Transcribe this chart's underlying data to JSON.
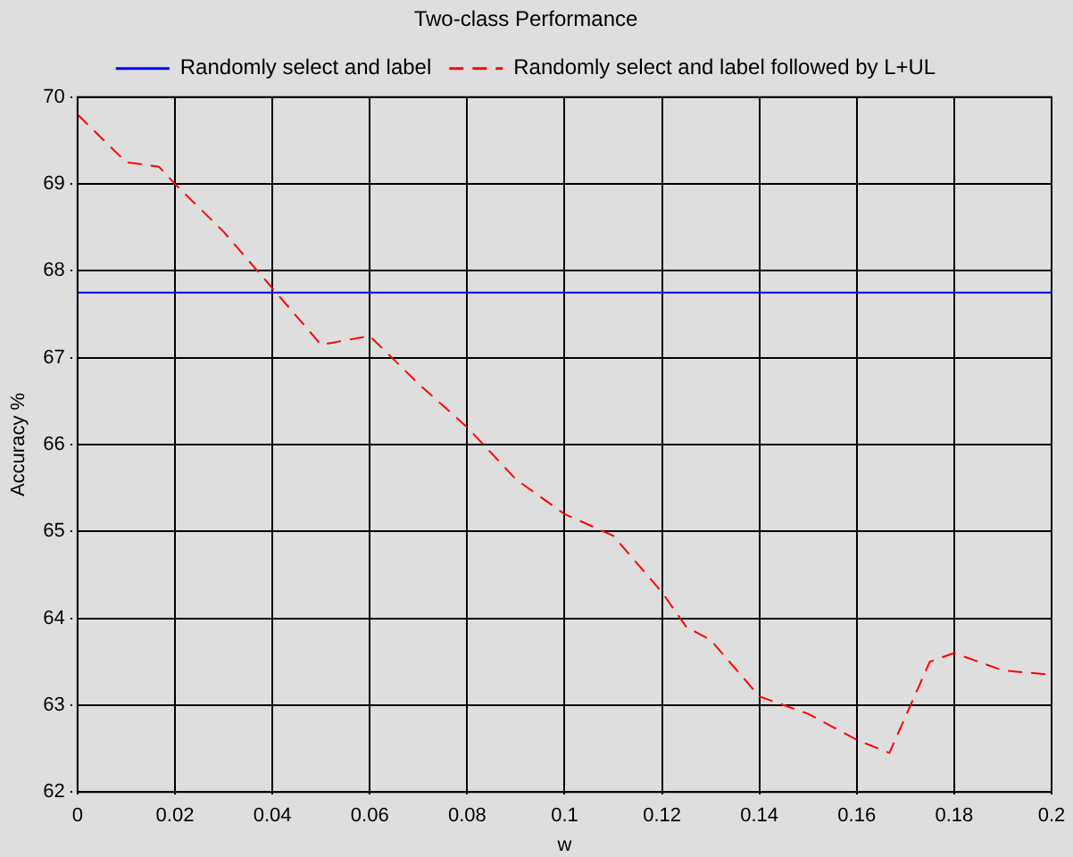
{
  "chart_data": {
    "type": "line",
    "title": "Two-class Performance",
    "xlabel": "w",
    "ylabel": "Accuracy %",
    "xlim": [
      0,
      0.2
    ],
    "xticks": [
      0,
      0.02,
      0.04,
      0.06,
      0.08,
      0.1,
      0.12,
      0.14,
      0.16,
      0.18,
      0.2
    ],
    "ylim": [
      62,
      70
    ],
    "yticks": [
      62,
      63,
      64,
      65,
      66,
      67,
      68,
      69,
      70
    ],
    "grid": true,
    "legend": "top",
    "marker": "none",
    "series": [
      {
        "name": "Randomly select and label",
        "color": "#0000ff",
        "line_style": "solid",
        "x": [
          0,
          0.2
        ],
        "values": [
          67.75,
          67.75
        ]
      },
      {
        "name": "Randomly select and label followed by L+UL",
        "color": "#ff0000",
        "line_style": "dashed",
        "x": [
          0,
          0.01,
          0.0167,
          0.02,
          0.03,
          0.04,
          0.05,
          0.06,
          0.07,
          0.08,
          0.09,
          0.1,
          0.11,
          0.12,
          0.125,
          0.13,
          0.14,
          0.15,
          0.16,
          0.1667,
          0.175,
          0.18,
          0.19,
          0.2
        ],
        "values": [
          69.8,
          69.25,
          69.2,
          69.0,
          68.45,
          67.8,
          67.15,
          67.25,
          66.7,
          66.2,
          65.6,
          65.2,
          64.95,
          64.3,
          63.9,
          63.75,
          63.1,
          62.9,
          62.6,
          62.45,
          63.5,
          63.6,
          63.4,
          63.35
        ]
      }
    ]
  }
}
